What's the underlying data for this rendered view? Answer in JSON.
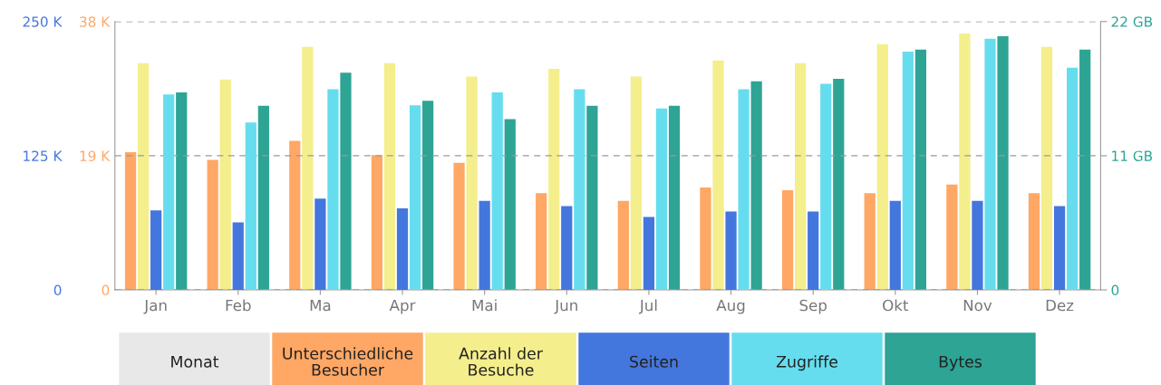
{
  "chart_data": {
    "type": "bar",
    "categories": [
      "Jan",
      "Feb",
      "Ma",
      "Apr",
      "Mai",
      "Jun",
      "Jul",
      "Aug",
      "Sep",
      "Okt",
      "Nov",
      "Dez"
    ],
    "legend_title": "Monat",
    "series": [
      {
        "name": "Unterschiedliche\nBesucher",
        "color": "#ffa764",
        "axis": "y2",
        "values": [
          19.5,
          18.4,
          21.1,
          19.1,
          18.0,
          13.7,
          12.6,
          14.5,
          14.1,
          13.7,
          14.9,
          13.7
        ]
      },
      {
        "name": "Anzahl der\nBesuche",
        "color": "#f4ee8c",
        "axis": "y2",
        "values": [
          32.1,
          29.8,
          34.4,
          32.1,
          30.2,
          31.3,
          30.2,
          32.5,
          32.1,
          34.8,
          36.3,
          34.4
        ]
      },
      {
        "name": "Seiten",
        "color": "#4477dd",
        "axis": "y",
        "values": [
          74,
          63,
          85,
          76,
          83,
          78,
          68,
          73,
          73,
          83,
          83,
          78
        ]
      },
      {
        "name": "Zugriffe",
        "color": "#66ddee",
        "axis": "y",
        "values": [
          182,
          156,
          187,
          172,
          184,
          187,
          169,
          187,
          192,
          222,
          234,
          207
        ]
      },
      {
        "name": "Bytes",
        "color": "#2ea495",
        "axis": "y3",
        "values": [
          16.2,
          15.1,
          17.8,
          15.5,
          14.0,
          15.1,
          15.1,
          17.1,
          17.3,
          19.7,
          20.8,
          19.7
        ]
      }
    ],
    "ylim": [
      0,
      250
    ],
    "yticks": [
      {
        "value": 0,
        "label": "0"
      },
      {
        "value": 125,
        "label": "125 K"
      },
      {
        "value": 250,
        "label": "250 K"
      }
    ],
    "y2lim": [
      0,
      38
    ],
    "y2ticks": [
      {
        "value": 0,
        "label": "0"
      },
      {
        "value": 19,
        "label": "19 K"
      },
      {
        "value": 38,
        "label": "38 K"
      }
    ],
    "y3lim": [
      0,
      22
    ],
    "y3ticks": [
      {
        "value": 0,
        "label": "0"
      },
      {
        "value": 11,
        "label": "11 GB"
      },
      {
        "value": 22,
        "label": "22 GB"
      }
    ],
    "grid": "y",
    "legend": "bottom"
  }
}
